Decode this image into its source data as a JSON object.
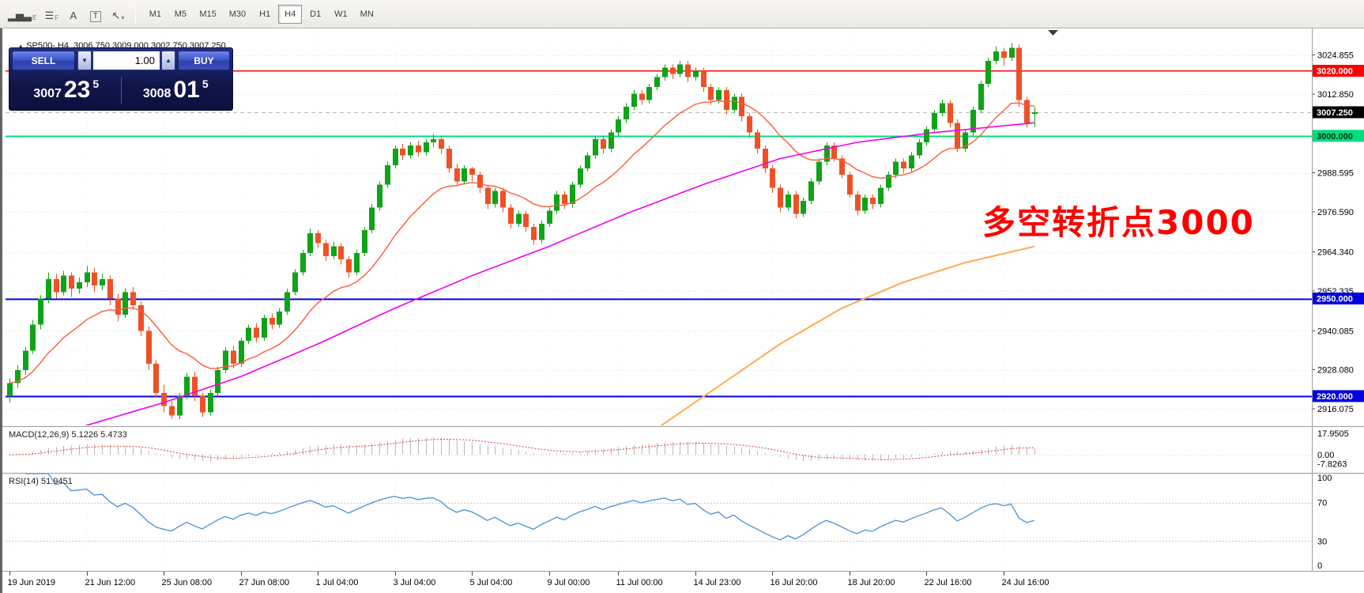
{
  "toolbar": {
    "icons": [
      {
        "name": "bar-chart-e-icon",
        "glyph": "▂▅▃",
        "sub": "E"
      },
      {
        "name": "list-f-icon",
        "glyph": "☰",
        "sub": "F"
      },
      {
        "name": "text-a-icon",
        "glyph": "A",
        "sub": ""
      },
      {
        "name": "boxed-t-icon",
        "glyph": "T",
        "sub": "",
        "boxed": true
      },
      {
        "name": "cursor-dropdown-icon",
        "glyph": "↖",
        "sub": "▾"
      }
    ],
    "timeframes": [
      "M1",
      "M5",
      "M15",
      "M30",
      "H1",
      "H4",
      "D1",
      "W1",
      "MN"
    ],
    "active_timeframe": "H4"
  },
  "chart_header": {
    "marker": "▲",
    "text": "SP500-,H4  3006.750 3009.000 3002.750 3007.250"
  },
  "trade_widget": {
    "sell_label": "SELL",
    "buy_label": "BUY",
    "volume": "1.00",
    "down_arrow": "▼",
    "up_arrow": "▲",
    "sell_price": {
      "base": "3007",
      "big": "23",
      "sup": "5"
    },
    "buy_price": {
      "base": "3008",
      "big": "01",
      "sup": "5"
    }
  },
  "annotation": {
    "text": "多空转折点3000",
    "color": "#ff0000"
  },
  "indicators": {
    "macd_label": "MACD(12,26,9) 5.1226 5.4733",
    "rsi_label": "RSI(14) 51.9451"
  },
  "chart_data": {
    "type": "candlestick",
    "symbol": "SP500-",
    "timeframe": "H4",
    "ohlc": {
      "open": 3006.75,
      "high": 3009.0,
      "low": 3002.75,
      "close": 3007.25
    },
    "price_axis": {
      "min": 2911,
      "max": 3033,
      "ticks": [
        3024.855,
        3012.85,
        2988.595,
        2976.59,
        2964.34,
        2952.335,
        2940.085,
        2928.08,
        2916.075
      ]
    },
    "hlines": [
      {
        "price": 3020,
        "label": "3020.000",
        "color": "#ff0000",
        "width": 1.5,
        "tag_text": "#ffffff"
      },
      {
        "price": 3000,
        "label": "3000.000",
        "color": "#00dd7d",
        "width": 2,
        "tag_text": "#00311a"
      },
      {
        "price": 2950,
        "label": "2950.000",
        "color": "#0000e0",
        "width": 2,
        "tag_text": "#ffffff"
      },
      {
        "price": 2920,
        "label": "2920.000",
        "color": "#0000e0",
        "width": 2,
        "tag_text": "#ffffff"
      }
    ],
    "bid": {
      "price": 3007.25,
      "label": "3007.250",
      "tag_bg": "#000000",
      "tag_text": "#ffffff",
      "line_color": "#b8b8b8"
    },
    "colors": {
      "up": "#0fa318",
      "down": "#ef5026",
      "grid": "#e0e0e0",
      "vgrid": "#f0f0f0"
    },
    "ma_fast": {
      "name": "ema-fast",
      "period": 16,
      "color": "#ff5a3a"
    },
    "ma_mid": {
      "name": "sma-mid",
      "color": "#f000f0",
      "points": [
        [
          0,
          2904
        ],
        [
          10,
          2911
        ],
        [
          20,
          2918
        ],
        [
          30,
          2926
        ],
        [
          40,
          2936
        ],
        [
          50,
          2947
        ],
        [
          60,
          2957
        ],
        [
          70,
          2966
        ],
        [
          80,
          2976
        ],
        [
          90,
          2985
        ],
        [
          100,
          2993
        ],
        [
          110,
          2998
        ],
        [
          120,
          3001
        ],
        [
          133,
          3004
        ]
      ]
    },
    "ma_slow": {
      "name": "sma-slow",
      "color": "#ffaa4d",
      "points": [
        [
          70,
          2889
        ],
        [
          76,
          2898
        ],
        [
          84,
          2910
        ],
        [
          92,
          2923
        ],
        [
          100,
          2936
        ],
        [
          108,
          2947
        ],
        [
          116,
          2955
        ],
        [
          124,
          2961
        ],
        [
          133,
          2966
        ]
      ]
    },
    "candles": [
      [
        2920,
        2925.5,
        2918,
        2924
      ],
      [
        2924,
        2929.5,
        2922.5,
        2928
      ],
      [
        2928,
        2935,
        2926.5,
        2934
      ],
      [
        2934,
        2943.5,
        2933,
        2942
      ],
      [
        2942,
        2951,
        2940.5,
        2950
      ],
      [
        2950,
        2958,
        2948.5,
        2956
      ],
      [
        2956,
        2957.5,
        2950,
        2952
      ],
      [
        2952,
        2958.5,
        2951,
        2957
      ],
      [
        2957,
        2958,
        2950.5,
        2953
      ],
      [
        2953,
        2956.5,
        2951.5,
        2955
      ],
      [
        2955,
        2960,
        2953.5,
        2958
      ],
      [
        2958,
        2959.5,
        2952,
        2954
      ],
      [
        2954,
        2957.5,
        2952.5,
        2956
      ],
      [
        2956,
        2957,
        2948,
        2950
      ],
      [
        2950,
        2951.5,
        2943,
        2945
      ],
      [
        2945,
        2953,
        2944,
        2952
      ],
      [
        2952,
        2953.5,
        2946.5,
        2948
      ],
      [
        2948,
        2949,
        2938.5,
        2940
      ],
      [
        2940,
        2941.5,
        2928,
        2930
      ],
      [
        2930,
        2931,
        2919.5,
        2921
      ],
      [
        2921,
        2923.5,
        2915,
        2917
      ],
      [
        2917,
        2918.5,
        2913,
        2914
      ],
      [
        2914,
        2921,
        2913,
        2920
      ],
      [
        2920,
        2927,
        2919,
        2926
      ],
      [
        2926,
        2927.5,
        2918.5,
        2920
      ],
      [
        2920,
        2921,
        2913.5,
        2915
      ],
      [
        2915,
        2922,
        2914,
        2921
      ],
      [
        2921,
        2929,
        2920,
        2928
      ],
      [
        2928,
        2935,
        2927,
        2934
      ],
      [
        2934,
        2935.5,
        2928.5,
        2930
      ],
      [
        2930,
        2938,
        2929,
        2937
      ],
      [
        2937,
        2942,
        2936,
        2941
      ],
      [
        2941,
        2942.5,
        2936.5,
        2938
      ],
      [
        2938,
        2945,
        2937,
        2944
      ],
      [
        2944,
        2945.5,
        2940.5,
        2942
      ],
      [
        2942,
        2947,
        2941,
        2946
      ],
      [
        2946,
        2953,
        2945,
        2952
      ],
      [
        2952,
        2959,
        2951,
        2958
      ],
      [
        2958,
        2965,
        2957,
        2964
      ],
      [
        2964,
        2971.5,
        2963,
        2970
      ],
      [
        2970,
        2971,
        2965.5,
        2967
      ],
      [
        2967,
        2968,
        2961.5,
        2963
      ],
      [
        2963,
        2967.5,
        2962,
        2966
      ],
      [
        2966,
        2967,
        2960.5,
        2962
      ],
      [
        2962,
        2963,
        2956.5,
        2958
      ],
      [
        2958,
        2965,
        2957,
        2964
      ],
      [
        2964,
        2972,
        2963,
        2971
      ],
      [
        2971,
        2979,
        2970,
        2978
      ],
      [
        2978,
        2986,
        2977,
        2985
      ],
      [
        2985,
        2992,
        2984,
        2991
      ],
      [
        2991,
        2997,
        2990,
        2996
      ],
      [
        2996,
        2997.5,
        2992.5,
        2994
      ],
      [
        2994,
        2998,
        2993,
        2997
      ],
      [
        2997,
        2998.5,
        2993.5,
        2995
      ],
      [
        2995,
        2999,
        2994,
        2998
      ],
      [
        2998,
        3000.5,
        2996.5,
        2999
      ],
      [
        2999,
        3000,
        2994.5,
        2996
      ],
      [
        2996,
        2997,
        2988.5,
        2990
      ],
      [
        2990,
        2991.5,
        2984.5,
        2986
      ],
      [
        2986,
        2991,
        2985,
        2990
      ],
      [
        2990,
        2990.5,
        2986,
        2988
      ],
      [
        2988,
        2989,
        2982.5,
        2984
      ],
      [
        2984,
        2985,
        2977.5,
        2979
      ],
      [
        2979,
        2984,
        2978,
        2983
      ],
      [
        2983,
        2984,
        2976.5,
        2978
      ],
      [
        2978,
        2979,
        2971.5,
        2973
      ],
      [
        2973,
        2977,
        2972,
        2976
      ],
      [
        2976,
        2977,
        2970.5,
        2972
      ],
      [
        2972,
        2973,
        2966.5,
        2968
      ],
      [
        2968,
        2974,
        2967,
        2973
      ],
      [
        2973,
        2978,
        2972,
        2977
      ],
      [
        2977,
        2983,
        2976,
        2982
      ],
      [
        2982,
        2983,
        2977.5,
        2979
      ],
      [
        2979,
        2986,
        2978,
        2985
      ],
      [
        2985,
        2991,
        2984,
        2990
      ],
      [
        2990,
        2995,
        2989,
        2994
      ],
      [
        2994,
        3000,
        2993,
        2999
      ],
      [
        2999,
        3000,
        2994.5,
        2996
      ],
      [
        2996,
        3002,
        2995,
        3001
      ],
      [
        3001,
        3006,
        3000,
        3005
      ],
      [
        3005,
        3010,
        3004,
        3009
      ],
      [
        3009,
        3014,
        3008,
        3013
      ],
      [
        3013,
        3014,
        3009.5,
        3011
      ],
      [
        3011,
        3016,
        3010,
        3015
      ],
      [
        3015,
        3019,
        3014,
        3018
      ],
      [
        3018,
        3022,
        3017,
        3021
      ],
      [
        3021,
        3022,
        3017.5,
        3019
      ],
      [
        3019,
        3023,
        3018,
        3022
      ],
      [
        3022,
        3023,
        3016.5,
        3018
      ],
      [
        3018,
        3021,
        3017,
        3020
      ],
      [
        3020,
        3021,
        3013.5,
        3015
      ],
      [
        3015,
        3016,
        3009.5,
        3011
      ],
      [
        3011,
        3015,
        3010,
        3014
      ],
      [
        3014,
        3015,
        3006.5,
        3008
      ],
      [
        3008,
        3013,
        3007,
        3012
      ],
      [
        3012,
        3013,
        3004.5,
        3006
      ],
      [
        3006,
        3007,
        2999.5,
        3001
      ],
      [
        3001,
        3002,
        2994.5,
        2996
      ],
      [
        2996,
        2997,
        2988.5,
        2990
      ],
      [
        2990,
        2991,
        2982.5,
        2984
      ],
      [
        2984,
        2985,
        2976.5,
        2978
      ],
      [
        2978,
        2983,
        2977,
        2982
      ],
      [
        2982,
        2983,
        2974.5,
        2976
      ],
      [
        2976,
        2981,
        2975,
        2980
      ],
      [
        2980,
        2987,
        2979,
        2986
      ],
      [
        2986,
        2993,
        2985,
        2992
      ],
      [
        2992,
        2998,
        2991,
        2997
      ],
      [
        2997,
        2998,
        2992,
        2993
      ],
      [
        2993,
        2994,
        2987,
        2988
      ],
      [
        2988,
        2989,
        2981,
        2982
      ],
      [
        2982,
        2983,
        2975.5,
        2977
      ],
      [
        2977,
        2982,
        2976,
        2981
      ],
      [
        2981,
        2982,
        2977.5,
        2979
      ],
      [
        2979,
        2985,
        2978,
        2984
      ],
      [
        2984,
        2989,
        2983,
        2988
      ],
      [
        2988,
        2993,
        2987,
        2992
      ],
      [
        2992,
        2993,
        2988.5,
        2990
      ],
      [
        2990,
        2995,
        2989,
        2994
      ],
      [
        2994,
        2999,
        2993,
        2998
      ],
      [
        2998,
        3003,
        2997,
        3002
      ],
      [
        3002,
        3008,
        3001,
        3007
      ],
      [
        3007,
        3011,
        3006,
        3010
      ],
      [
        3010,
        3011,
        3002.5,
        3004
      ],
      [
        3004,
        3005,
        2995,
        2996
      ],
      [
        2996,
        3002,
        2995,
        3001
      ],
      [
        3001,
        3009,
        3000,
        3008
      ],
      [
        3008,
        3017,
        3007,
        3016
      ],
      [
        3016,
        3024,
        3015,
        3023
      ],
      [
        3023,
        3027.5,
        3022,
        3026
      ],
      [
        3026,
        3027,
        3021.5,
        3024
      ],
      [
        3024,
        3028.5,
        3023,
        3027
      ],
      [
        3027,
        3028,
        3009,
        3011
      ],
      [
        3011,
        3012,
        3002.5,
        3004
      ],
      [
        3006.75,
        3009,
        3002.75,
        3007.25
      ]
    ],
    "time_labels": [
      {
        "i": 0,
        "t": "19 Jun 2019"
      },
      {
        "i": 10,
        "t": "21 Jun 12:00"
      },
      {
        "i": 20,
        "t": "25 Jun 08:00"
      },
      {
        "i": 30,
        "t": "27 Jun 08:00"
      },
      {
        "i": 40,
        "t": "1 Jul 04:00"
      },
      {
        "i": 50,
        "t": "3 Jul 04:00"
      },
      {
        "i": 60,
        "t": "5 Jul 04:00"
      },
      {
        "i": 70,
        "t": "9 Jul 00:00"
      },
      {
        "i": 79,
        "t": "11 Jul 00:00"
      },
      {
        "i": 89,
        "t": "14 Jul 23:00"
      },
      {
        "i": 99,
        "t": "16 Jul 20:00"
      },
      {
        "i": 109,
        "t": "18 Jul 20:00"
      },
      {
        "i": 119,
        "t": "22 Jul 16:00"
      },
      {
        "i": 129,
        "t": "24 Jul 16:00"
      }
    ],
    "macd": {
      "params": [
        12,
        26,
        9
      ],
      "current": [
        5.1226,
        5.4733
      ],
      "scale": [
        {
          "v": 17.9505,
          "t": "17.9505"
        },
        {
          "v": 0,
          "t": "0.00"
        },
        {
          "v": -7.8263,
          "t": "-7.8263"
        }
      ],
      "hist_color": "#b8b8b8",
      "signal_color": "#e03a3a"
    },
    "rsi": {
      "period": 14,
      "current": 51.9451,
      "levels": [
        100,
        70,
        30,
        0
      ],
      "guide_levels": [
        70,
        30
      ],
      "color": "#4a90d8"
    }
  }
}
